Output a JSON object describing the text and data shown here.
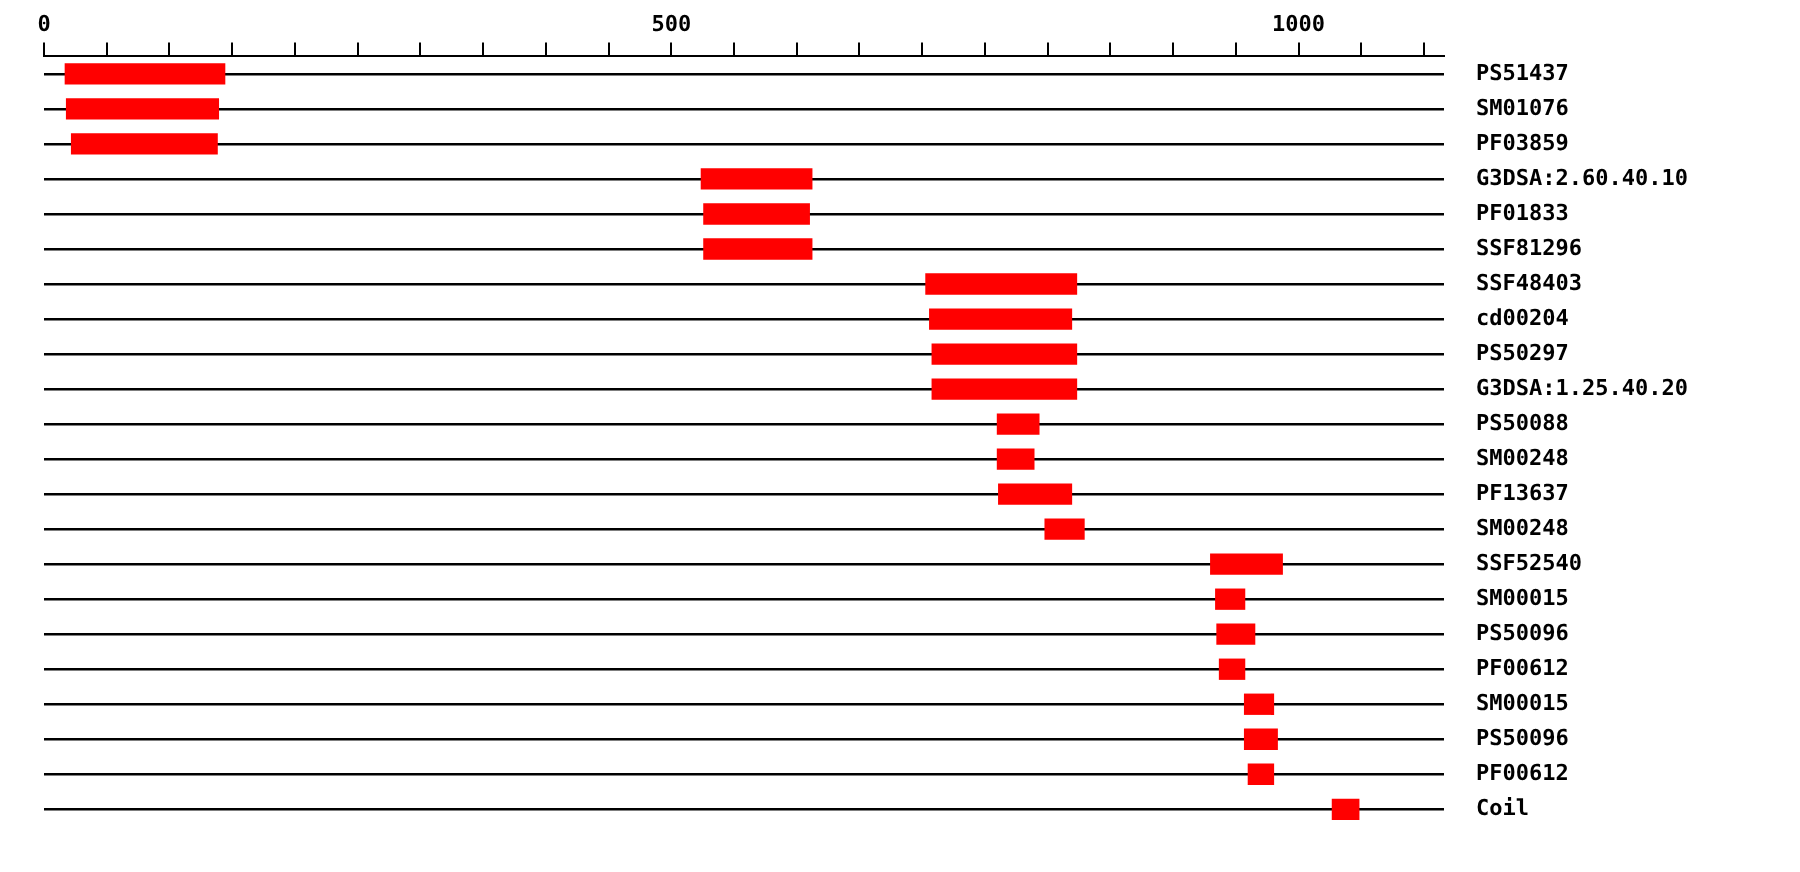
{
  "chart_data": {
    "type": "bar",
    "orientation": "horizontal",
    "grid": "y",
    "categories": [
      "PS51437",
      "SM01076",
      "PF03859",
      "G3DSA:2.60.40.10",
      "PF01833",
      "SSF81296",
      "SSF48403",
      "cd00204",
      "PS50297",
      "G3DSA:1.25.40.20",
      "PS50088",
      "SM00248",
      "PF13637",
      "SM00248",
      "SSF52540",
      "SM00015",
      "PS50096",
      "PF00612",
      "SM00015",
      "PS50096",
      "PF00612",
      "Coil"
    ],
    "base": [
      17,
      18,
      22,
      524,
      526,
      526,
      703,
      706,
      708,
      708,
      760,
      760,
      761,
      798,
      930,
      934,
      935,
      937,
      957,
      957,
      960,
      1027
    ],
    "values": [
      127,
      121,
      116,
      88,
      84,
      86,
      120,
      113,
      115,
      115,
      33,
      29,
      58,
      31,
      57,
      23,
      30,
      20,
      23,
      26,
      20,
      21
    ],
    "color": "#ff0000",
    "xlim": [
      0,
      1116
    ],
    "xticks": [
      0,
      {
        "value": 50,
        "label": null
      },
      {
        "value": 100,
        "label": null
      },
      {
        "value": 150,
        "label": null
      },
      {
        "value": 200,
        "label": null
      },
      {
        "value": 250,
        "label": null
      },
      {
        "value": 300,
        "label": null
      },
      {
        "value": 350,
        "label": null
      },
      {
        "value": 400,
        "label": null
      },
      {
        "value": 450,
        "label": null
      },
      500,
      {
        "value": 550,
        "label": null
      },
      {
        "value": 600,
        "label": null
      },
      {
        "value": 650,
        "label": null
      },
      {
        "value": 700,
        "label": null
      },
      {
        "value": 750,
        "label": null
      },
      {
        "value": 800,
        "label": null
      },
      {
        "value": 850,
        "label": null
      },
      {
        "value": 900,
        "label": null
      },
      {
        "value": 950,
        "label": null
      },
      1000,
      {
        "value": 1050,
        "label": null
      },
      {
        "value": 1100,
        "label": null
      }
    ]
  }
}
